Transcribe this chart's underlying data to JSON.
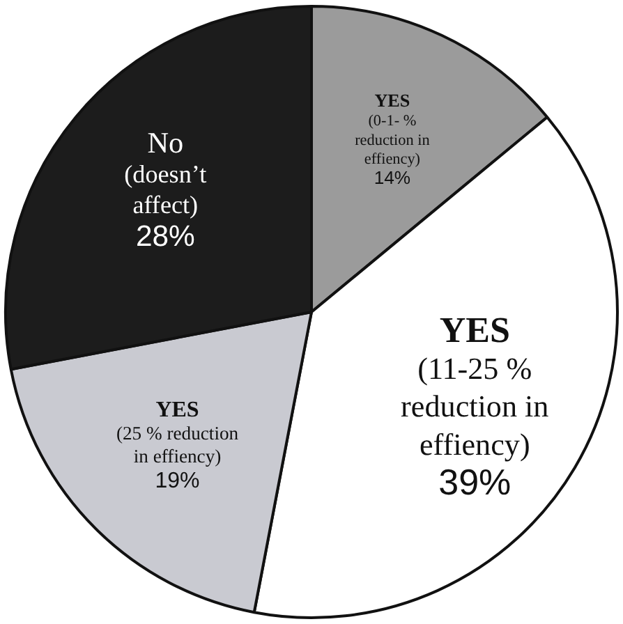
{
  "chart_data": {
    "type": "pie",
    "categories": [
      "YES\n(0-1- %\nreduction in\neffiency)",
      "YES\n(11-25 %\nreduction in\neffiency)",
      "YES\n(25 % reduction\nin effiency)",
      "No\n(doesn’t\naffect)"
    ],
    "values": [
      14,
      39,
      19,
      28
    ],
    "value_labels": [
      "14%",
      "39%",
      "19%",
      "28%"
    ],
    "colors": [
      "#9b9b9b",
      "#ffffff",
      "#c9cad1",
      "#1c1c1c"
    ],
    "legend": false
  }
}
